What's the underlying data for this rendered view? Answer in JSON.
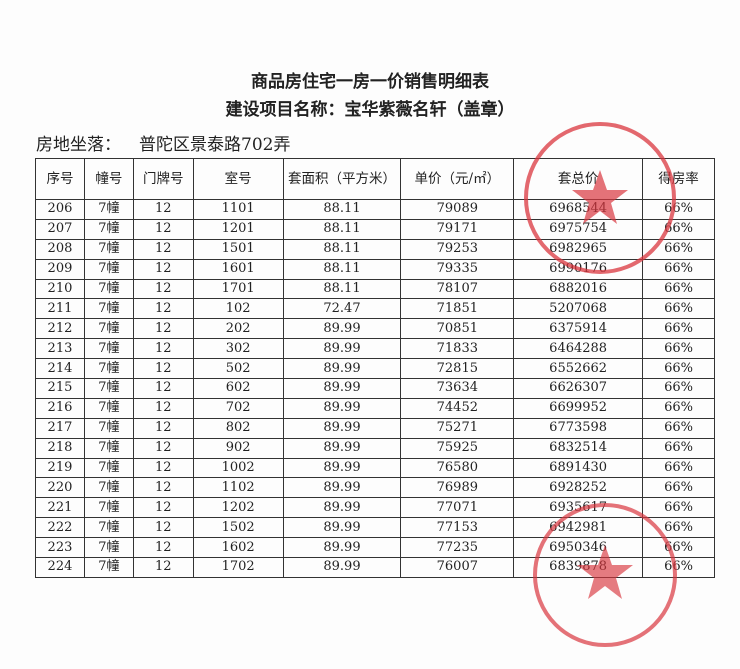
{
  "title": "商品房住宅一房一价销售明细表",
  "subtitle": "建设项目名称：宝华紫薇名轩（盖章）",
  "location_label": "房地坐落：",
  "location_value": "普陀区景泰路702弄",
  "stamp_color": "#d9363e",
  "columns": [
    "序号",
    "幢号",
    "门牌号",
    "室号",
    "套面积（平方米）",
    "单价（元/㎡）",
    "套总价",
    "得房率"
  ],
  "rows": [
    [
      "206",
      "7幢",
      "12",
      "1101",
      "88.11",
      "79089",
      "6968544",
      "66%"
    ],
    [
      "207",
      "7幢",
      "12",
      "1201",
      "88.11",
      "79171",
      "6975754",
      "66%"
    ],
    [
      "208",
      "7幢",
      "12",
      "1501",
      "88.11",
      "79253",
      "6982965",
      "66%"
    ],
    [
      "209",
      "7幢",
      "12",
      "1601",
      "88.11",
      "79335",
      "6990176",
      "66%"
    ],
    [
      "210",
      "7幢",
      "12",
      "1701",
      "88.11",
      "78107",
      "6882016",
      "66%"
    ],
    [
      "211",
      "7幢",
      "12",
      "102",
      "72.47",
      "71851",
      "5207068",
      "66%"
    ],
    [
      "212",
      "7幢",
      "12",
      "202",
      "89.99",
      "70851",
      "6375914",
      "66%"
    ],
    [
      "213",
      "7幢",
      "12",
      "302",
      "89.99",
      "71833",
      "6464288",
      "66%"
    ],
    [
      "214",
      "7幢",
      "12",
      "502",
      "89.99",
      "72815",
      "6552662",
      "66%"
    ],
    [
      "215",
      "7幢",
      "12",
      "602",
      "89.99",
      "73634",
      "6626307",
      "66%"
    ],
    [
      "216",
      "7幢",
      "12",
      "702",
      "89.99",
      "74452",
      "6699952",
      "66%"
    ],
    [
      "217",
      "7幢",
      "12",
      "802",
      "89.99",
      "75271",
      "6773598",
      "66%"
    ],
    [
      "218",
      "7幢",
      "12",
      "902",
      "89.99",
      "75925",
      "6832514",
      "66%"
    ],
    [
      "219",
      "7幢",
      "12",
      "1002",
      "89.99",
      "76580",
      "6891430",
      "66%"
    ],
    [
      "220",
      "7幢",
      "12",
      "1102",
      "89.99",
      "76989",
      "6928252",
      "66%"
    ],
    [
      "221",
      "7幢",
      "12",
      "1202",
      "89.99",
      "77071",
      "6935617",
      "66%"
    ],
    [
      "222",
      "7幢",
      "12",
      "1502",
      "89.99",
      "77153",
      "6942981",
      "66%"
    ],
    [
      "223",
      "7幢",
      "12",
      "1602",
      "89.99",
      "77235",
      "6950346",
      "66%"
    ],
    [
      "224",
      "7幢",
      "12",
      "1702",
      "89.99",
      "76007",
      "6839878",
      "66%"
    ]
  ]
}
